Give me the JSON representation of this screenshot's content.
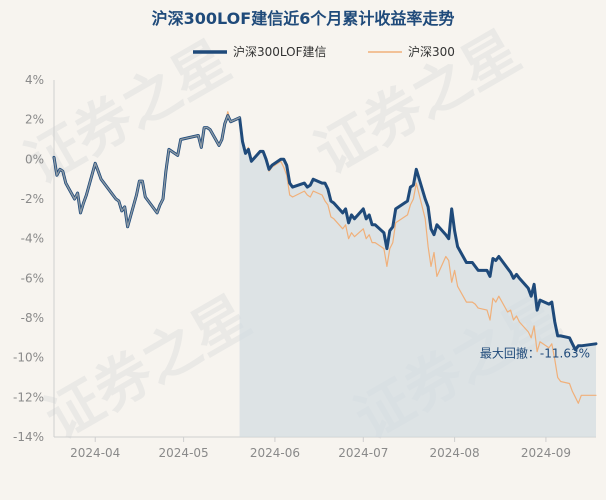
{
  "chart_data": {
    "type": "line",
    "title": "沪深300LOF建信近6个月累计收益率走势",
    "legend_position": "top-center",
    "grid": false,
    "ylim": [
      -14,
      4
    ],
    "yticks": [
      "4%",
      "2%",
      "0%",
      "-2%",
      "-4%",
      "-6%",
      "-8%",
      "-10%",
      "-12%",
      "-14%"
    ],
    "ytick_values": [
      4,
      2,
      0,
      -2,
      -4,
      -6,
      -8,
      -10,
      -12,
      -14
    ],
    "xlim": [
      "2024-03-18",
      "2024-09-18"
    ],
    "xticks": [
      "2024-04",
      "2024-05",
      "2024-06",
      "2024-07",
      "2024-08",
      "2024-09"
    ],
    "xtick_dates": [
      "2024-04-01",
      "2024-05-01",
      "2024-06-01",
      "2024-07-01",
      "2024-08-01",
      "2024-09-01"
    ],
    "shade_start": "2024-05-20",
    "annotation": {
      "text": "最大回撤：-11.63%",
      "x": "2024-09-15",
      "y": -9.6
    },
    "watermark": "证券之星",
    "series": [
      {
        "name": "沪深300LOF建信",
        "color": "#1f4a7a",
        "x": [
          "2024-03-18",
          "2024-03-19",
          "2024-03-20",
          "2024-03-21",
          "2024-03-22",
          "2024-03-25",
          "2024-03-26",
          "2024-03-27",
          "2024-03-28",
          "2024-03-29",
          "2024-04-01",
          "2024-04-02",
          "2024-04-03",
          "2024-04-08",
          "2024-04-09",
          "2024-04-10",
          "2024-04-11",
          "2024-04-12",
          "2024-04-15",
          "2024-04-16",
          "2024-04-17",
          "2024-04-18",
          "2024-04-19",
          "2024-04-22",
          "2024-04-23",
          "2024-04-24",
          "2024-04-25",
          "2024-04-26",
          "2024-04-29",
          "2024-04-30",
          "2024-05-06",
          "2024-05-07",
          "2024-05-08",
          "2024-05-09",
          "2024-05-10",
          "2024-05-13",
          "2024-05-14",
          "2024-05-15",
          "2024-05-16",
          "2024-05-17",
          "2024-05-20",
          "2024-05-21",
          "2024-05-22",
          "2024-05-23",
          "2024-05-24",
          "2024-05-27",
          "2024-05-28",
          "2024-05-29",
          "2024-05-30",
          "2024-05-31",
          "2024-06-03",
          "2024-06-04",
          "2024-06-05",
          "2024-06-06",
          "2024-06-07",
          "2024-06-11",
          "2024-06-12",
          "2024-06-13",
          "2024-06-14",
          "2024-06-17",
          "2024-06-18",
          "2024-06-19",
          "2024-06-20",
          "2024-06-21",
          "2024-06-24",
          "2024-06-25",
          "2024-06-26",
          "2024-06-27",
          "2024-06-28",
          "2024-07-01",
          "2024-07-02",
          "2024-07-03",
          "2024-07-04",
          "2024-07-05",
          "2024-07-08",
          "2024-07-09",
          "2024-07-10",
          "2024-07-11",
          "2024-07-12",
          "2024-07-15",
          "2024-07-16",
          "2024-07-17",
          "2024-07-18",
          "2024-07-19",
          "2024-07-22",
          "2024-07-23",
          "2024-07-24",
          "2024-07-25",
          "2024-07-26",
          "2024-07-29",
          "2024-07-30",
          "2024-07-31",
          "2024-08-01",
          "2024-08-02",
          "2024-08-05",
          "2024-08-06",
          "2024-08-07",
          "2024-08-08",
          "2024-08-09",
          "2024-08-12",
          "2024-08-13",
          "2024-08-14",
          "2024-08-15",
          "2024-08-16",
          "2024-08-19",
          "2024-08-20",
          "2024-08-21",
          "2024-08-22",
          "2024-08-23",
          "2024-08-26",
          "2024-08-27",
          "2024-08-28",
          "2024-08-29",
          "2024-08-30",
          "2024-09-02",
          "2024-09-03",
          "2024-09-04",
          "2024-09-05",
          "2024-09-06",
          "2024-09-09",
          "2024-09-10",
          "2024-09-11",
          "2024-09-12",
          "2024-09-13",
          "2024-09-18"
        ],
        "values": [
          0.1,
          -0.8,
          -0.5,
          -0.6,
          -1.2,
          -2.0,
          -1.7,
          -2.7,
          -2.2,
          -1.8,
          -0.2,
          -0.6,
          -1.0,
          -2.0,
          -2.1,
          -2.6,
          -2.4,
          -3.4,
          -1.8,
          -1.1,
          -1.1,
          -1.9,
          -2.1,
          -2.7,
          -2.3,
          -2.0,
          -0.6,
          0.5,
          0.2,
          1.0,
          1.2,
          0.6,
          1.6,
          1.6,
          1.5,
          0.7,
          1.0,
          1.8,
          2.2,
          1.9,
          2.1,
          0.9,
          0.3,
          0.5,
          -0.1,
          0.4,
          0.4,
          0.0,
          -0.5,
          -0.3,
          0.0,
          0.0,
          -0.3,
          -1.2,
          -1.4,
          -1.2,
          -1.4,
          -1.3,
          -1.0,
          -1.2,
          -1.2,
          -1.5,
          -2.1,
          -2.2,
          -2.7,
          -2.5,
          -3.2,
          -2.8,
          -3.0,
          -2.5,
          -3.0,
          -2.8,
          -3.3,
          -3.3,
          -3.7,
          -4.5,
          -3.6,
          -3.4,
          -2.5,
          -2.2,
          -2.1,
          -1.4,
          -1.3,
          -0.5,
          -2.0,
          -2.4,
          -3.5,
          -3.8,
          -3.3,
          -3.8,
          -4.0,
          -2.5,
          -3.6,
          -4.4,
          -5.2,
          -5.2,
          -5.2,
          -5.4,
          -5.6,
          -5.6,
          -5.9,
          -5.0,
          -5.1,
          -4.9,
          -5.5,
          -5.7,
          -6.0,
          -5.8,
          -6.0,
          -6.5,
          -6.9,
          -6.3,
          -7.6,
          -7.1,
          -7.3,
          -7.2,
          -8.2,
          -8.9,
          -8.9,
          -9.0,
          -9.3,
          -9.6,
          -9.4,
          -9.4,
          -9.3
        ],
        "line_width": 3
      },
      {
        "name": "沪深300",
        "color": "#f0b07a",
        "x": [
          "2024-03-18",
          "2024-03-19",
          "2024-03-20",
          "2024-03-21",
          "2024-03-22",
          "2024-03-25",
          "2024-03-26",
          "2024-03-27",
          "2024-03-28",
          "2024-03-29",
          "2024-04-01",
          "2024-04-02",
          "2024-04-03",
          "2024-04-08",
          "2024-04-09",
          "2024-04-10",
          "2024-04-11",
          "2024-04-12",
          "2024-04-15",
          "2024-04-16",
          "2024-04-17",
          "2024-04-18",
          "2024-04-19",
          "2024-04-22",
          "2024-04-23",
          "2024-04-24",
          "2024-04-25",
          "2024-04-26",
          "2024-04-29",
          "2024-04-30",
          "2024-05-06",
          "2024-05-07",
          "2024-05-08",
          "2024-05-09",
          "2024-05-10",
          "2024-05-13",
          "2024-05-14",
          "2024-05-15",
          "2024-05-16",
          "2024-05-17",
          "2024-05-20",
          "2024-05-21",
          "2024-05-22",
          "2024-05-23",
          "2024-05-24",
          "2024-05-27",
          "2024-05-28",
          "2024-05-29",
          "2024-05-30",
          "2024-05-31",
          "2024-06-03",
          "2024-06-04",
          "2024-06-05",
          "2024-06-06",
          "2024-06-07",
          "2024-06-11",
          "2024-06-12",
          "2024-06-13",
          "2024-06-14",
          "2024-06-17",
          "2024-06-18",
          "2024-06-19",
          "2024-06-20",
          "2024-06-21",
          "2024-06-24",
          "2024-06-25",
          "2024-06-26",
          "2024-06-27",
          "2024-06-28",
          "2024-07-01",
          "2024-07-02",
          "2024-07-03",
          "2024-07-04",
          "2024-07-05",
          "2024-07-08",
          "2024-07-09",
          "2024-07-10",
          "2024-07-11",
          "2024-07-12",
          "2024-07-15",
          "2024-07-16",
          "2024-07-17",
          "2024-07-18",
          "2024-07-19",
          "2024-07-22",
          "2024-07-23",
          "2024-07-24",
          "2024-07-25",
          "2024-07-26",
          "2024-07-29",
          "2024-07-30",
          "2024-07-31",
          "2024-08-01",
          "2024-08-02",
          "2024-08-05",
          "2024-08-06",
          "2024-08-07",
          "2024-08-08",
          "2024-08-09",
          "2024-08-12",
          "2024-08-13",
          "2024-08-14",
          "2024-08-15",
          "2024-08-16",
          "2024-08-19",
          "2024-08-20",
          "2024-08-21",
          "2024-08-22",
          "2024-08-23",
          "2024-08-26",
          "2024-08-27",
          "2024-08-28",
          "2024-08-29",
          "2024-08-30",
          "2024-09-02",
          "2024-09-03",
          "2024-09-04",
          "2024-09-05",
          "2024-09-06",
          "2024-09-09",
          "2024-09-10",
          "2024-09-11",
          "2024-09-12",
          "2024-09-13",
          "2024-09-18"
        ],
        "values": [
          0.1,
          -0.8,
          -0.5,
          -0.6,
          -1.2,
          -2.0,
          -1.7,
          -2.7,
          -2.2,
          -1.8,
          -0.2,
          -0.6,
          -1.0,
          -2.0,
          -2.1,
          -2.6,
          -2.4,
          -3.4,
          -1.8,
          -1.1,
          -1.1,
          -1.9,
          -2.1,
          -2.7,
          -2.3,
          -2.0,
          -0.6,
          0.5,
          0.2,
          1.0,
          1.2,
          0.6,
          1.6,
          1.6,
          1.5,
          0.7,
          1.0,
          1.8,
          2.4,
          1.9,
          2.1,
          0.9,
          0.3,
          0.6,
          -0.1,
          0.4,
          0.3,
          -0.1,
          -0.6,
          -0.4,
          -0.1,
          -0.4,
          -0.8,
          -1.8,
          -1.9,
          -1.6,
          -1.8,
          -1.9,
          -1.6,
          -1.8,
          -2.1,
          -2.3,
          -2.9,
          -3.0,
          -3.5,
          -3.3,
          -4.0,
          -3.7,
          -3.9,
          -3.5,
          -4.0,
          -3.8,
          -4.2,
          -4.2,
          -4.5,
          -5.4,
          -4.5,
          -4.2,
          -3.2,
          -2.9,
          -2.8,
          -2.3,
          -2.0,
          -1.2,
          -3.0,
          -4.4,
          -5.4,
          -4.7,
          -5.9,
          -4.9,
          -5.1,
          -6.2,
          -5.6,
          -6.4,
          -7.2,
          -7.2,
          -7.2,
          -7.3,
          -7.5,
          -7.6,
          -8.1,
          -7.0,
          -7.2,
          -6.9,
          -7.7,
          -7.6,
          -8.1,
          -7.9,
          -8.2,
          -8.7,
          -9.0,
          -8.4,
          -9.7,
          -9.2,
          -9.5,
          -9.3,
          -10.1,
          -11.0,
          -11.2,
          -11.3,
          -11.7,
          -12.0,
          -12.3,
          -11.9,
          -11.9
        ],
        "line_width": 1.2
      }
    ]
  }
}
